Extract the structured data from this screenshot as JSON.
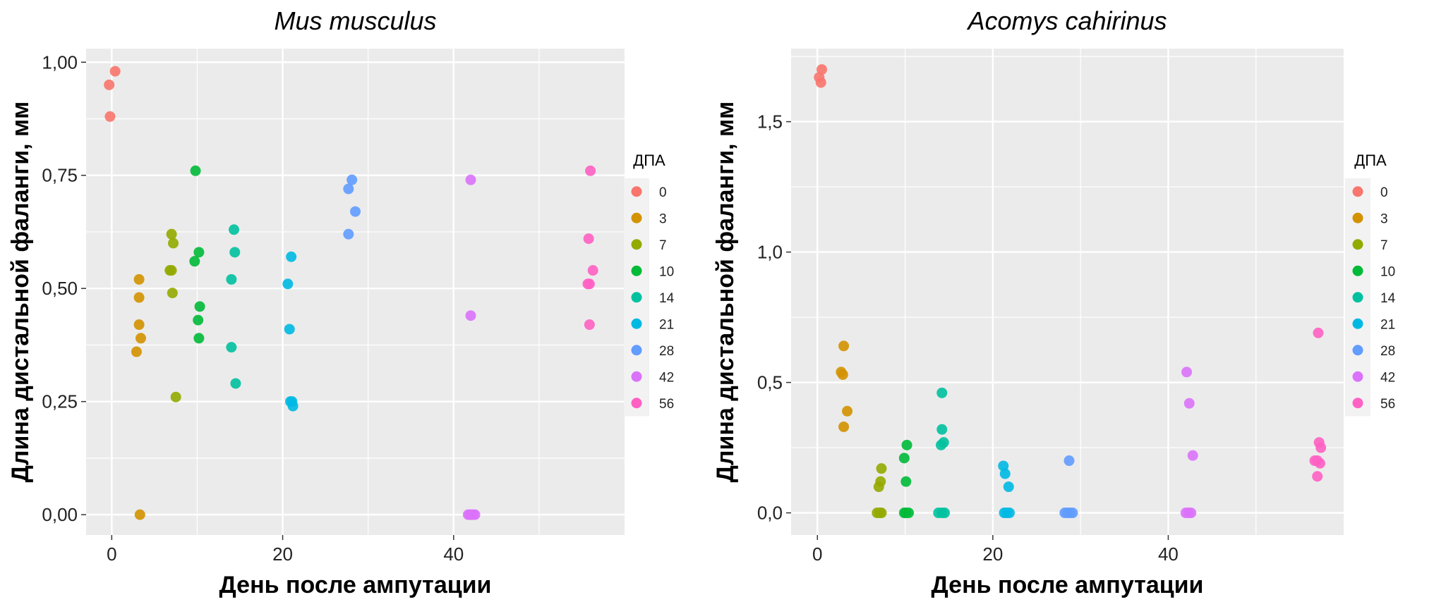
{
  "chart_data": [
    {
      "type": "scatter",
      "title": "Mus musculus",
      "xlabel": "День после ампутации",
      "ylabel": "Длина дистальной фаланги, мм",
      "xlim": [
        -3,
        60
      ],
      "ylim": [
        -0.045,
        1.03
      ],
      "xticks": [
        0,
        20,
        40
      ],
      "xtick_labels": [
        "0",
        "20",
        "40"
      ],
      "yticks": [
        0,
        0.25,
        0.5,
        0.75,
        1.0
      ],
      "ytick_labels": [
        "0,00",
        "0,25",
        "0,50",
        "0,75",
        "1,00"
      ],
      "grid": true,
      "legend": {
        "title": "ДПА",
        "placement": "right",
        "entries": [
          "0",
          "3",
          "7",
          "10",
          "14",
          "21",
          "28",
          "42",
          "56"
        ],
        "colors": [
          "#F8766D",
          "#D39200",
          "#93AA00",
          "#00BA38",
          "#00C19F",
          "#00B9E3",
          "#619CFF",
          "#DB72FB",
          "#FF61C3"
        ]
      },
      "series": [
        {
          "name": "0",
          "color": "#F8766D",
          "points": [
            [
              -0.3,
              0.95
            ],
            [
              -0.2,
              0.88
            ],
            [
              0.4,
              0.98
            ]
          ]
        },
        {
          "name": "3",
          "color": "#D39200",
          "points": [
            [
              2.9,
              0.36
            ],
            [
              3.2,
              0.52
            ],
            [
              3.2,
              0.48
            ],
            [
              3.2,
              0.42
            ],
            [
              3.4,
              0.39
            ],
            [
              3.3,
              0.0
            ]
          ]
        },
        {
          "name": "7",
          "color": "#93AA00",
          "points": [
            [
              6.8,
              0.54
            ],
            [
              7.0,
              0.54
            ],
            [
              7.0,
              0.62
            ],
            [
              7.2,
              0.6
            ],
            [
              7.1,
              0.49
            ],
            [
              7.5,
              0.26
            ]
          ]
        },
        {
          "name": "10",
          "color": "#00BA38",
          "points": [
            [
              9.8,
              0.76
            ],
            [
              9.7,
              0.56
            ],
            [
              10.2,
              0.58
            ],
            [
              10.3,
              0.46
            ],
            [
              10.1,
              0.43
            ],
            [
              10.2,
              0.39
            ]
          ]
        },
        {
          "name": "14",
          "color": "#00C19F",
          "points": [
            [
              14.3,
              0.63
            ],
            [
              14.4,
              0.58
            ],
            [
              14.0,
              0.52
            ],
            [
              14.0,
              0.37
            ],
            [
              14.5,
              0.29
            ]
          ]
        },
        {
          "name": "21",
          "color": "#00B9E3",
          "points": [
            [
              20.6,
              0.51
            ],
            [
              21.0,
              0.57
            ],
            [
              20.8,
              0.41
            ],
            [
              20.9,
              0.25
            ],
            [
              21.1,
              0.25
            ],
            [
              21.2,
              0.24
            ]
          ]
        },
        {
          "name": "28",
          "color": "#619CFF",
          "points": [
            [
              28.1,
              0.74
            ],
            [
              27.7,
              0.72
            ],
            [
              28.5,
              0.67
            ],
            [
              27.7,
              0.62
            ]
          ]
        },
        {
          "name": "42",
          "color": "#DB72FB",
          "points": [
            [
              42.0,
              0.74
            ],
            [
              42.0,
              0.44
            ],
            [
              41.7,
              0.0
            ],
            [
              41.9,
              0.0
            ],
            [
              42.1,
              0.0
            ],
            [
              42.3,
              0.0
            ],
            [
              42.5,
              0.0
            ]
          ]
        },
        {
          "name": "56",
          "color": "#FF61C3",
          "points": [
            [
              56.0,
              0.76
            ],
            [
              55.8,
              0.61
            ],
            [
              56.3,
              0.54
            ],
            [
              55.7,
              0.51
            ],
            [
              55.9,
              0.51
            ],
            [
              55.9,
              0.42
            ]
          ]
        }
      ]
    },
    {
      "type": "scatter",
      "title": "Acomys cahirinus",
      "xlabel": "День после ампутации",
      "ylabel": "Длина дистальной фаланги, мм",
      "xlim": [
        -3,
        60
      ],
      "ylim": [
        -0.085,
        1.78
      ],
      "xticks": [
        0,
        20,
        40
      ],
      "xtick_labels": [
        "0",
        "20",
        "40"
      ],
      "yticks": [
        0,
        0.5,
        1.0,
        1.5
      ],
      "ytick_labels": [
        "0,0",
        "0,5",
        "1,0",
        "1,5"
      ],
      "grid": true,
      "legend": {
        "title": "ДПА",
        "placement": "right",
        "entries": [
          "0",
          "3",
          "7",
          "10",
          "14",
          "21",
          "28",
          "42",
          "56"
        ],
        "colors": [
          "#F8766D",
          "#D39200",
          "#93AA00",
          "#00BA38",
          "#00C19F",
          "#00B9E3",
          "#619CFF",
          "#DB72FB",
          "#FF61C3"
        ]
      },
      "series": [
        {
          "name": "0",
          "color": "#F8766D",
          "points": [
            [
              0.5,
              1.7
            ],
            [
              0.2,
              1.67
            ],
            [
              0.4,
              1.65
            ]
          ]
        },
        {
          "name": "3",
          "color": "#D39200",
          "points": [
            [
              3.0,
              0.64
            ],
            [
              2.7,
              0.54
            ],
            [
              2.9,
              0.53
            ],
            [
              3.4,
              0.39
            ],
            [
              3.0,
              0.33
            ]
          ]
        },
        {
          "name": "7",
          "color": "#93AA00",
          "points": [
            [
              7.3,
              0.17
            ],
            [
              7.2,
              0.12
            ],
            [
              7.0,
              0.1
            ],
            [
              6.8,
              0.0
            ],
            [
              7.1,
              0.0
            ],
            [
              7.3,
              0.0
            ]
          ]
        },
        {
          "name": "10",
          "color": "#00BA38",
          "points": [
            [
              10.2,
              0.26
            ],
            [
              9.9,
              0.21
            ],
            [
              10.1,
              0.12
            ],
            [
              9.9,
              0.0
            ],
            [
              10.1,
              0.0
            ],
            [
              10.4,
              0.0
            ]
          ]
        },
        {
          "name": "14",
          "color": "#00C19F",
          "points": [
            [
              14.2,
              0.46
            ],
            [
              14.2,
              0.32
            ],
            [
              14.4,
              0.27
            ],
            [
              14.1,
              0.26
            ],
            [
              13.8,
              0.0
            ],
            [
              14.2,
              0.0
            ],
            [
              14.5,
              0.0
            ]
          ]
        },
        {
          "name": "21",
          "color": "#00B9E3",
          "points": [
            [
              21.2,
              0.18
            ],
            [
              21.4,
              0.15
            ],
            [
              21.8,
              0.1
            ],
            [
              21.3,
              0.0
            ],
            [
              21.6,
              0.0
            ],
            [
              21.9,
              0.0
            ]
          ]
        },
        {
          "name": "28",
          "color": "#619CFF",
          "points": [
            [
              28.7,
              0.2
            ],
            [
              28.2,
              0.0
            ],
            [
              28.5,
              0.0
            ],
            [
              28.8,
              0.0
            ],
            [
              29.1,
              0.0
            ]
          ]
        },
        {
          "name": "42",
          "color": "#DB72FB",
          "points": [
            [
              42.1,
              0.54
            ],
            [
              42.4,
              0.42
            ],
            [
              42.8,
              0.22
            ],
            [
              42.0,
              0.0
            ],
            [
              42.3,
              0.0
            ],
            [
              42.6,
              0.0
            ]
          ]
        },
        {
          "name": "56",
          "color": "#FF61C3",
          "points": [
            [
              57.1,
              0.69
            ],
            [
              57.2,
              0.27
            ],
            [
              57.4,
              0.25
            ],
            [
              56.7,
              0.2
            ],
            [
              57.0,
              0.2
            ],
            [
              57.3,
              0.19
            ],
            [
              57.0,
              0.14
            ]
          ]
        }
      ]
    }
  ]
}
